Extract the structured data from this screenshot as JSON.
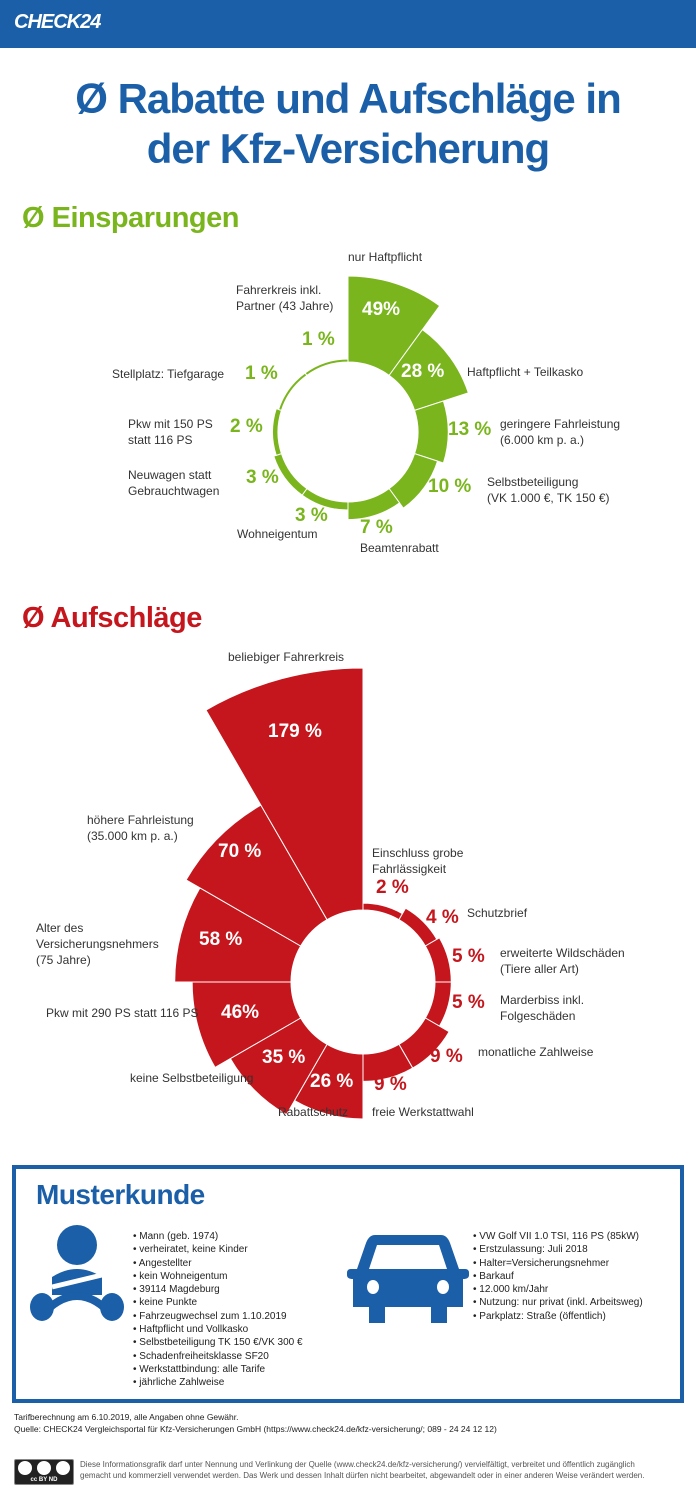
{
  "header": {
    "logo": "CHECK24",
    "title_line1": "Ø Rabatte und Aufschläge in",
    "title_line2": "der Kfz-Versicherung"
  },
  "colors": {
    "brand_blue": "#1a5fa8",
    "savings_green": "#7ab51d",
    "surcharge_red": "#c4161c"
  },
  "chart_data": [
    {
      "type": "pie",
      "variant": "polar-area",
      "title": "Ø Einsparungen",
      "categories": [
        "nur Haftpflicht",
        "Haftpflicht + Teilkasko",
        "geringere Fahrleistung\n(6.000 km p. a.)",
        "Selbstbeteiligung\n(VK 1.000 €, TK 150 €)",
        "Beamtenrabatt",
        "Wohneigentum",
        "Neuwagen statt\nGebrauchtwagen",
        "Pkw mit 150 PS\nstatt 116 PS",
        "Stellplatz: Tiefgarage",
        "Fahrerkreis inkl.\nPartner (43 Jahre)"
      ],
      "values": [
        49,
        28,
        13,
        10,
        7,
        3,
        3,
        2,
        1,
        1
      ],
      "value_labels": [
        "49%",
        "28 %",
        "13 %",
        "10 %",
        "7 %",
        "3 %",
        "3 %",
        "2 %",
        "1 %",
        "1 %"
      ],
      "unit": "%"
    },
    {
      "type": "pie",
      "variant": "polar-area",
      "title": "Ø Aufschläge",
      "categories": [
        "Einschluss grobe\nFahrlässigkeit",
        "Schutzbrief",
        "erweiterte Wildschäden\n(Tiere aller Art)",
        "Marderbiss inkl.\nFolgeschäden",
        "monatliche Zahlweise",
        "freie Werkstattwahl",
        "Rabattschutz",
        "keine Selbstbeteiligung",
        "Pkw mit 290 PS statt 116 PS",
        "Alter des\nVersicherungsnehmers\n(75 Jahre)",
        "höhere Fahrleistung\n(35.000 km p. a.)",
        "beliebiger Fahrerkreis"
      ],
      "values": [
        2,
        4,
        5,
        5,
        9,
        9,
        26,
        35,
        46,
        58,
        70,
        179
      ],
      "value_labels": [
        "2 %",
        "4 %",
        "5 %",
        "5 %",
        "9 %",
        "9 %",
        "26 %",
        "35 %",
        "46%",
        "58 %",
        "70 %",
        "179 %"
      ],
      "unit": "%"
    }
  ],
  "musterkunde": {
    "title": "Musterkunde",
    "person_icon": "driver-icon",
    "car_icon": "car-icon",
    "person": [
      "Mann (geb. 1974)",
      "verheiratet, keine Kinder",
      "Angestellter",
      "kein Wohneigentum",
      "39114 Magdeburg",
      "keine Punkte",
      "Fahrzeugwechsel zum 1.10.2019",
      "Haftpflicht und Vollkasko",
      "Selbstbeteiligung TK 150 €/VK 300 €",
      "Schadenfreiheitsklasse SF20",
      "Werkstattbindung: alle Tarife",
      "jährliche Zahlweise"
    ],
    "car": [
      "VW Golf VII 1.0 TSI, 116 PS (85kW)",
      "Erstzulassung: Juli 2018",
      "Halter=Versicherungsnehmer",
      "Barkauf",
      "12.000 km/Jahr",
      "Nutzung: nur privat (inkl. Arbeitsweg)",
      "Parkplatz: Straße (öffentlich)"
    ]
  },
  "footer": {
    "note": "Tarifberechnung am 6.10.2019, alle Angaben ohne Gewähr.",
    "source": "Quelle: CHECK24 Vergleichsportal für Kfz-Versicherungen GmbH (https://www.check24.de/kfz-versicherung/; 089 - 24 24 12 12)",
    "cc_badge": "cc BY ND",
    "license": "Diese Informationsgrafik darf unter Nennung und Verlinkung der Quelle (www.check24.de/kfz-versicherung/) vervielfältigt, verbreitet und öffentlich zugänglich gemacht und kommerziell verwendet werden. Das Werk und dessen Inhalt dürfen nicht bearbeitet, abgewandelt oder in einer anderen Weise verändert werden."
  }
}
